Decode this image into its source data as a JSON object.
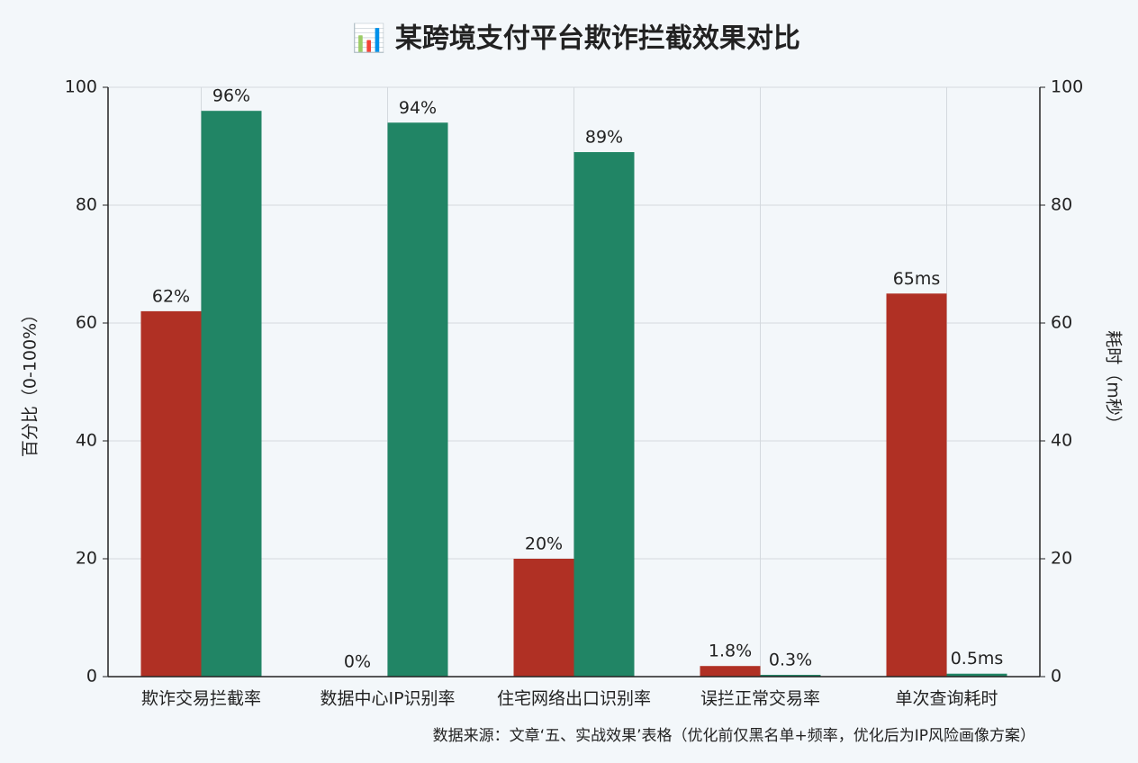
{
  "chart_data": {
    "type": "bar",
    "title": "📊 某跨境支付平台欺诈拦截效果对比",
    "y_label": "百分比（0-100%）",
    "y2_label": "耗时（m秒）",
    "note": "数据来源：文章‘五、实战效果’表格（优化前仅黑名单+频率，优化后为IP风险画像方案）",
    "categories": [
      "欺诈交易拦截率",
      "数据中心IP识别率",
      "住宅网络出口识别率",
      "误拦正常交易率",
      "单次查询耗时"
    ],
    "series": [
      {
        "color": "#b03024",
        "values": [
          62,
          0,
          20,
          1.8,
          null
        ],
        "value_labels": [
          "62%",
          "0%",
          "20%",
          "1.8%",
          null
        ]
      },
      {
        "color": "#218565",
        "values": [
          96,
          94,
          89,
          0.3,
          null
        ],
        "value_labels": [
          "96%",
          "94%",
          "89%",
          "0.3%",
          null
        ]
      },
      {
        "color": "#b03024",
        "axis": "y2",
        "values": [
          null,
          null,
          null,
          null,
          65
        ],
        "value_labels": [
          null,
          null,
          null,
          null,
          "65ms"
        ]
      },
      {
        "color": "#218565",
        "axis": "y2",
        "values": [
          null,
          null,
          null,
          null,
          0.5
        ],
        "value_labels": [
          null,
          null,
          null,
          null,
          "0.5ms"
        ]
      }
    ],
    "ylim": [
      0,
      100
    ],
    "yticks": [
      0,
      20,
      40,
      60,
      80,
      100
    ],
    "y2lim": [
      0,
      100
    ],
    "y2ticks": [
      0,
      20,
      40,
      60,
      80,
      100
    ],
    "grid": true
  }
}
